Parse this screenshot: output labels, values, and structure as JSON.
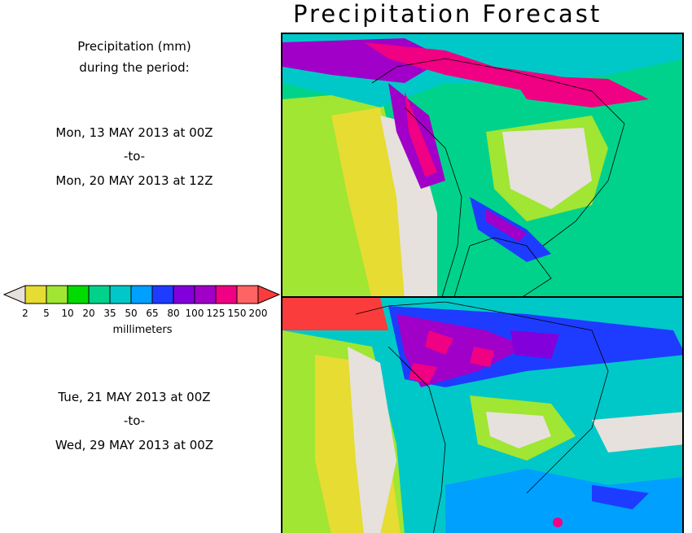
{
  "title": "Precipitation Forecast",
  "description": {
    "line1": "Precipitation (mm)",
    "line2": "during the period:"
  },
  "period1": {
    "start": "Mon, 13 MAY 2013 at 00Z",
    "to": "-to-",
    "end": "Mon, 20 MAY 2013 at 12Z"
  },
  "period2": {
    "start": "Tue, 21 MAY 2013 at 00Z",
    "to": "-to-",
    "end": "Wed, 29 MAY 2013 at 00Z"
  },
  "colorbar": {
    "unit": "millimeters",
    "ticks": [
      "2",
      "5",
      "10",
      "20",
      "35",
      "50",
      "65",
      "80",
      "100",
      "125",
      "150",
      "200"
    ],
    "below_color": "#e6e1dc",
    "colors": [
      "#e6dc32",
      "#a0e632",
      "#00dc00",
      "#00d28c",
      "#00c8c8",
      "#00a0ff",
      "#1e3cff",
      "#8200dc",
      "#a000c8",
      "#f00082",
      "#ff6464"
    ],
    "above_color": "#fa3c3c"
  }
}
